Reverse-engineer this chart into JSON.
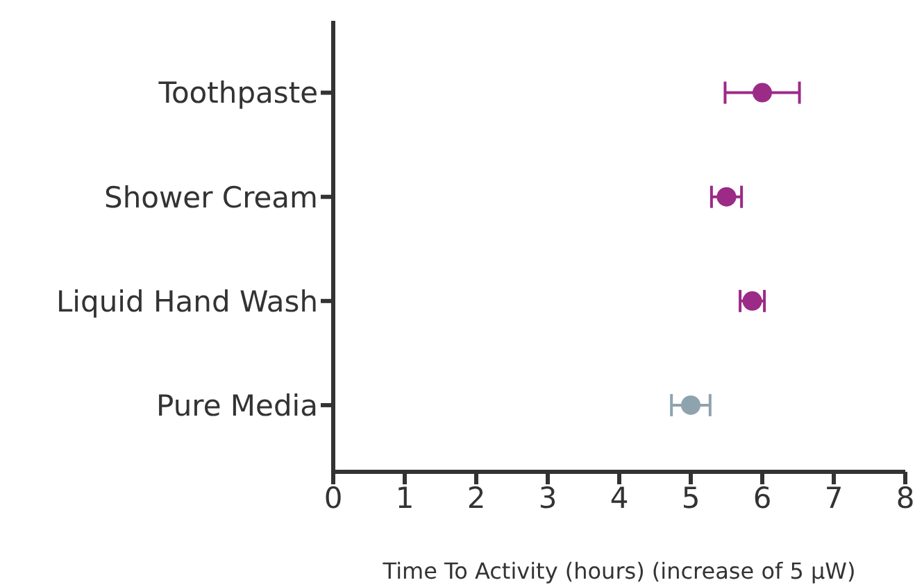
{
  "chart_data": {
    "type": "scatter",
    "orientation": "horizontal",
    "xlabel": "Time To  Activity (hours) (increase of 5 μW)",
    "categories": [
      "Toothpaste",
      "Shower Cream",
      "Liquid Hand Wash",
      "Pure Media"
    ],
    "values": [
      6.0,
      5.5,
      5.86,
      5.0
    ],
    "errors": [
      0.52,
      0.21,
      0.17,
      0.27
    ],
    "colors": [
      "#9c2a87",
      "#9c2a87",
      "#9c2a87",
      "#8fa3ae"
    ],
    "xlim": [
      0,
      8
    ],
    "xticks": [
      0,
      1,
      2,
      3,
      4,
      5,
      6,
      7,
      8
    ],
    "grid": false,
    "legend": false,
    "marker": "circle"
  }
}
